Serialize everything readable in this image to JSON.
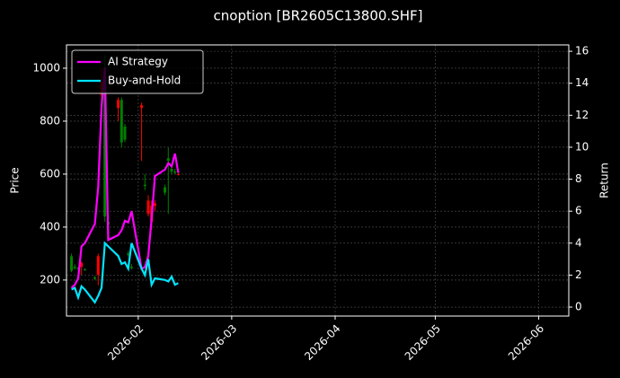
{
  "chart_data": {
    "type": "candlestick",
    "title": "cnoption [BR2605C13800.SHF]",
    "y_label": "Price",
    "y2_label": "Return",
    "x": [
      11,
      12,
      13,
      14,
      15,
      18,
      19,
      20,
      21,
      22,
      25,
      26,
      27,
      28,
      29,
      32,
      33,
      34,
      35,
      36,
      39,
      40,
      41,
      42,
      43
    ],
    "open": [
      290,
      250,
      245,
      250,
      240,
      210,
      220,
      900,
      980,
      420,
      850,
      880,
      780,
      300,
      250,
      850,
      560,
      450,
      420,
      480,
      550,
      660,
      620,
      610,
      600
    ],
    "high": [
      300,
      260,
      250,
      270,
      245,
      215,
      300,
      1000,
      1050,
      430,
      890,
      890,
      790,
      310,
      260,
      870,
      600,
      520,
      500,
      500,
      560,
      700,
      640,
      620,
      610
    ],
    "low": [
      230,
      240,
      238,
      220,
      235,
      200,
      180,
      850,
      420,
      400,
      800,
      700,
      720,
      290,
      240,
      650,
      540,
      440,
      390,
      460,
      520,
      450,
      600,
      600,
      595
    ],
    "close": [
      235,
      245,
      240,
      265,
      238,
      205,
      290,
      950,
      440,
      410,
      880,
      720,
      730,
      295,
      245,
      860,
      555,
      500,
      480,
      490,
      530,
      650,
      610,
      605,
      600
    ],
    "up_color": "#ff0000",
    "down_color": "#008000",
    "series": [
      {
        "name": "AI Strategy",
        "color": "#ff00ff",
        "axis": "y2",
        "values": [
          1.2,
          1.4,
          1.8,
          3.8,
          4.0,
          5.2,
          7.5,
          12.5,
          15.0,
          4.2,
          4.5,
          4.8,
          5.4,
          5.3,
          6.0,
          2.4,
          2.5,
          3.2,
          5.5,
          8.2,
          8.6,
          9.0,
          8.8,
          9.6,
          8.4
        ]
      },
      {
        "name": "Buy-and-Hold",
        "color": "#00e5ff",
        "axis": "y2",
        "values": [
          1.1,
          1.2,
          0.6,
          1.3,
          1.1,
          0.3,
          0.7,
          1.2,
          4.0,
          3.8,
          3.2,
          2.7,
          2.8,
          2.4,
          4.0,
          2.4,
          2.0,
          3.0,
          1.4,
          1.8,
          1.7,
          1.6,
          1.9,
          1.4,
          1.5
        ]
      }
    ],
    "xlim": [
      9.5,
      160
    ],
    "xticks": [
      {
        "value": 31,
        "label": "2026-02"
      },
      {
        "value": 59,
        "label": "2026-03"
      },
      {
        "value": 90,
        "label": "2026-04"
      },
      {
        "value": 120,
        "label": "2026-05"
      },
      {
        "value": 151,
        "label": "2026-06"
      }
    ],
    "ylim": [
      64,
      1088
    ],
    "yticks": [
      200,
      400,
      600,
      800,
      1000
    ],
    "y2lim": [
      -0.56,
      16.4
    ],
    "y2ticks": [
      0,
      2,
      4,
      6,
      8,
      10,
      12,
      14,
      16
    ],
    "grid": true,
    "legend": "upper-left"
  }
}
